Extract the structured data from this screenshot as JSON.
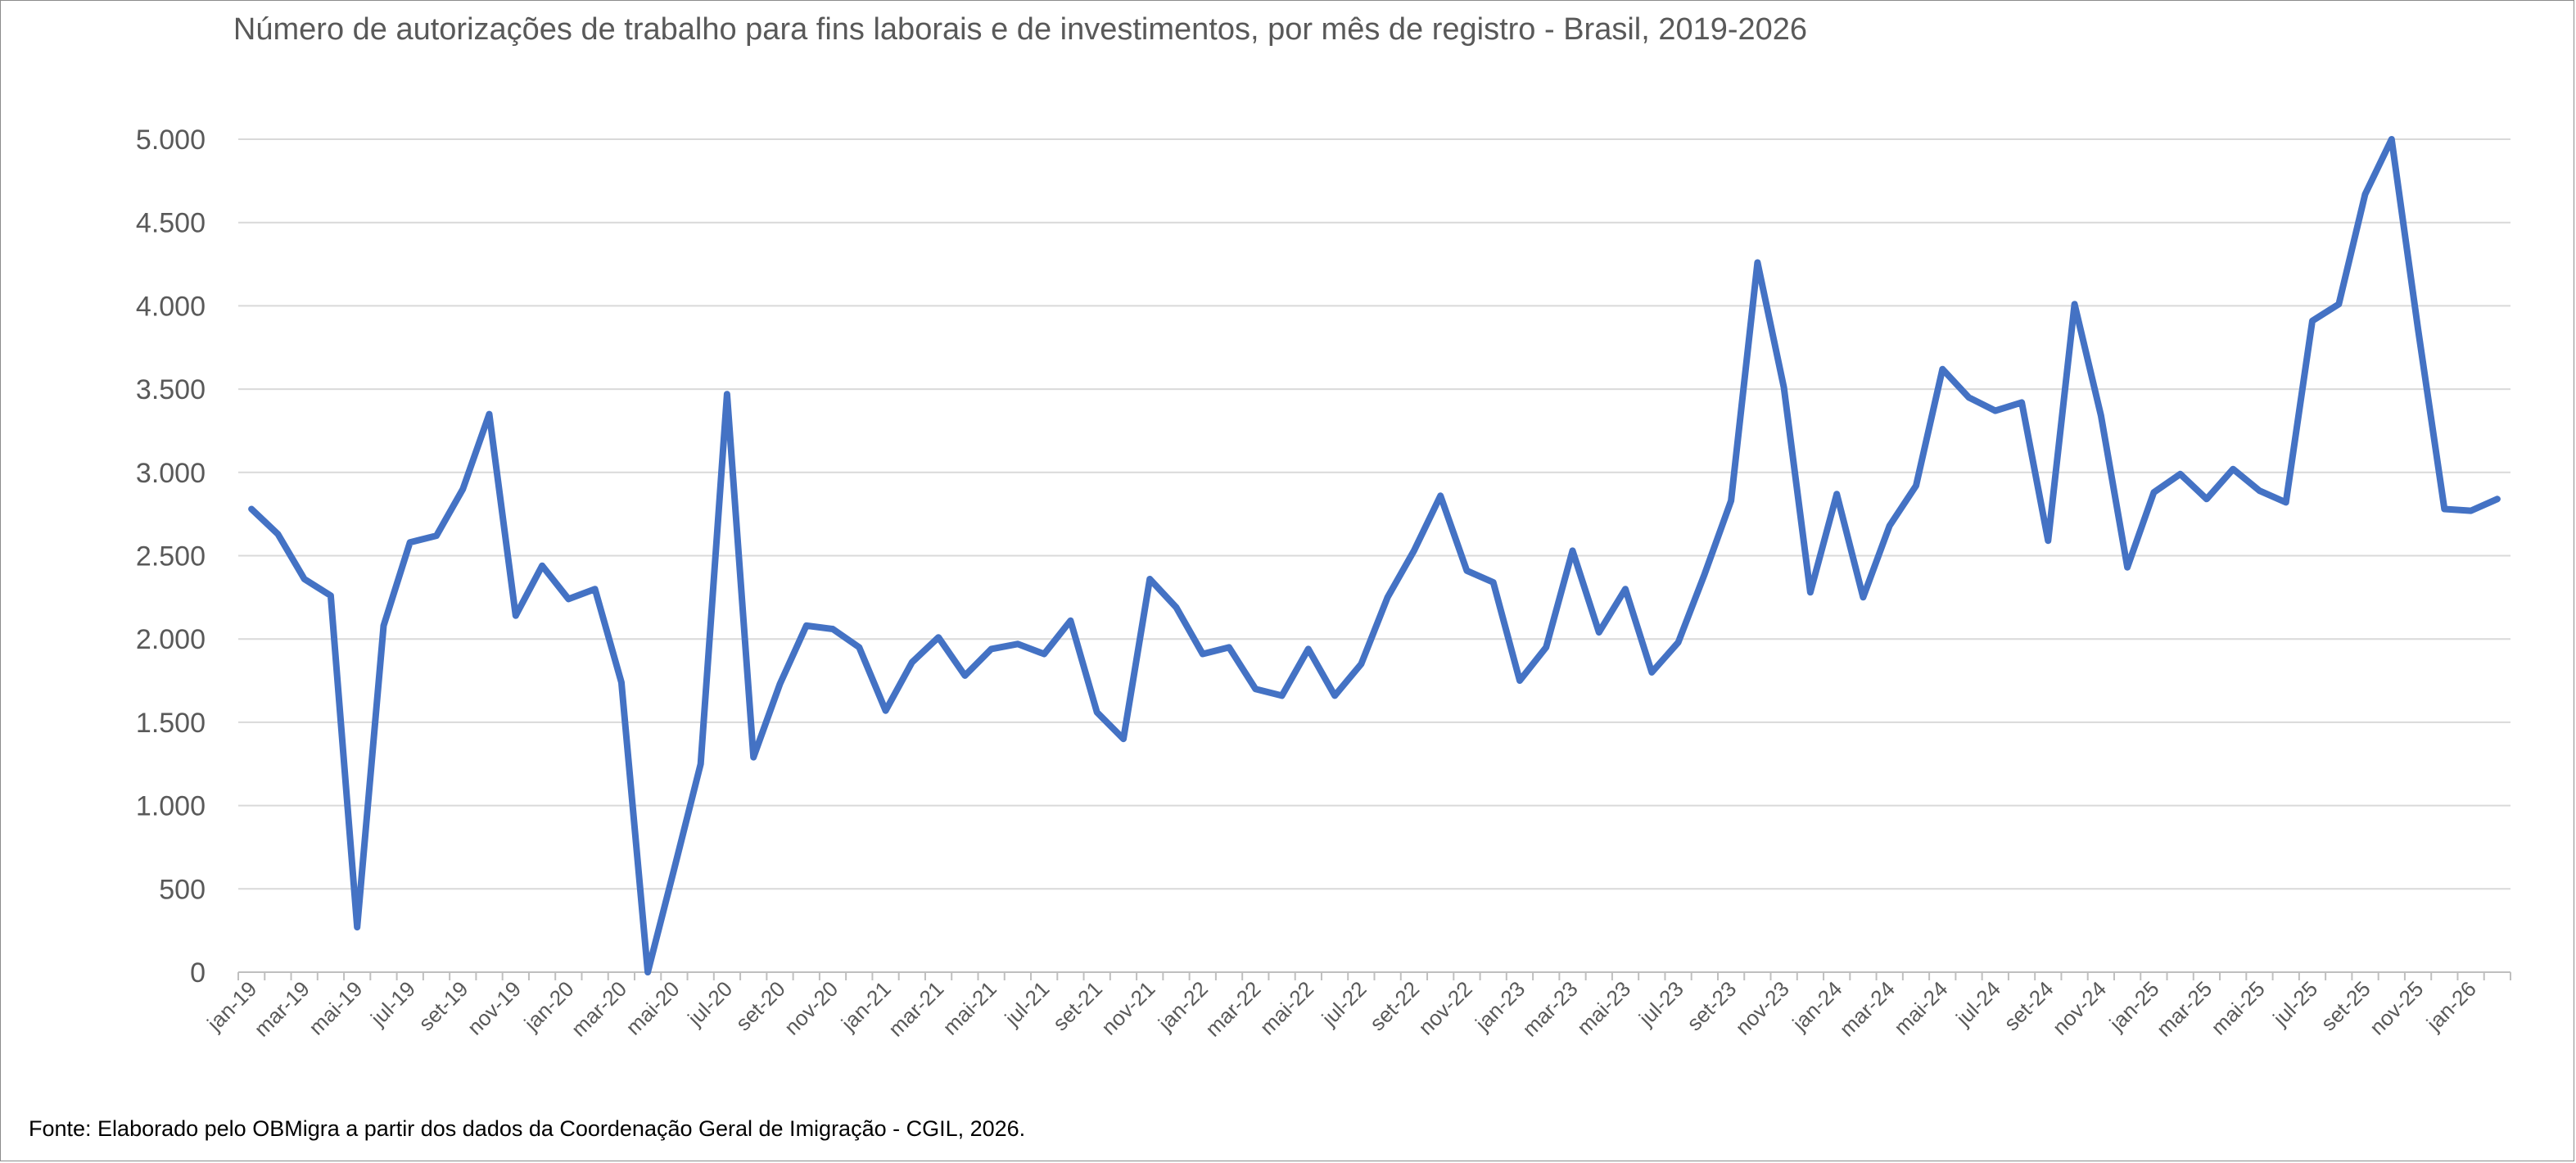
{
  "chart_data": {
    "type": "line",
    "title": "Número de autorizações de trabalho para fins laborais e de investimentos, por mês de registro - Brasil, 2019-2026",
    "xlabel": "",
    "ylabel": "",
    "ylim": [
      0,
      5000
    ],
    "yticks": [
      0,
      500,
      1000,
      1500,
      2000,
      2500,
      3000,
      3500,
      4000,
      4500,
      5000
    ],
    "ytick_labels": [
      "0",
      "500",
      "1.000",
      "1.500",
      "2.000",
      "2.500",
      "3.000",
      "3.500",
      "4.000",
      "4.500",
      "5.000"
    ],
    "grid": true,
    "legend": "none",
    "line_color": "#4472c4",
    "x": [
      "jan-19",
      "fev-19",
      "mar-19",
      "abr-19",
      "mai-19",
      "jun-19",
      "jul-19",
      "ago-19",
      "set-19",
      "out-19",
      "nov-19",
      "dez-19",
      "jan-20",
      "fev-20",
      "mar-20",
      "abr-20",
      "mai-20",
      "jun-20",
      "jul-20",
      "ago-20",
      "set-20",
      "out-20",
      "nov-20",
      "dez-20",
      "jan-21",
      "fev-21",
      "mar-21",
      "abr-21",
      "mai-21",
      "jun-21",
      "jul-21",
      "ago-21",
      "set-21",
      "out-21",
      "nov-21",
      "dez-21",
      "jan-22",
      "fev-22",
      "mar-22",
      "abr-22",
      "mai-22",
      "jun-22",
      "jul-22",
      "ago-22",
      "set-22",
      "out-22",
      "nov-22",
      "dez-22",
      "jan-23",
      "fev-23",
      "mar-23",
      "abr-23",
      "mai-23",
      "jun-23",
      "jul-23",
      "ago-23",
      "set-23",
      "out-23",
      "nov-23",
      "dez-23",
      "jan-24",
      "fev-24",
      "mar-24",
      "abr-24",
      "mai-24",
      "jun-24",
      "jul-24",
      "ago-24",
      "set-24",
      "out-24",
      "nov-24",
      "dez-24",
      "jan-25",
      "fev-25",
      "mar-25",
      "abr-25",
      "mai-25",
      "jun-25",
      "jul-25",
      "ago-25",
      "set-25",
      "out-25",
      "nov-25",
      "dez-25",
      "jan-26",
      "fev-26"
    ],
    "xtick_labels": [
      "jan-19",
      "mar-19",
      "mai-19",
      "jul-19",
      "set-19",
      "nov-19",
      "jan-20",
      "mar-20",
      "mai-20",
      "jul-20",
      "set-20",
      "nov-20",
      "jan-21",
      "mar-21",
      "mai-21",
      "jul-21",
      "set-21",
      "nov-21",
      "jan-22",
      "mar-22",
      "mai-22",
      "jul-22",
      "set-22",
      "nov-22",
      "jan-23",
      "mar-23",
      "mai-23",
      "jul-23",
      "set-23",
      "nov-23",
      "jan-24",
      "mar-24",
      "mai-24",
      "jul-24",
      "set-24",
      "nov-24",
      "jan-25",
      "mar-25",
      "mai-25",
      "jul-25",
      "set-25",
      "nov-25",
      "jan-26"
    ],
    "series": [
      {
        "values": [
          2780,
          2630,
          2360,
          2260,
          270,
          2080,
          2580,
          2620,
          2900,
          3350,
          2140,
          2440,
          2240,
          2300,
          1740,
          0,
          620,
          1250,
          3470,
          1290,
          1730,
          2080,
          2060,
          1950,
          1570,
          1860,
          2010,
          1780,
          1940,
          1970,
          1910,
          2110,
          1560,
          1400,
          2360,
          2190,
          1910,
          1950,
          1700,
          1660,
          1940,
          1660,
          1850,
          2250,
          2530,
          2860,
          2410,
          2340,
          1750,
          1950,
          2530,
          2040,
          2300,
          1800,
          1980,
          2390,
          2830,
          4260,
          3510,
          2280,
          2870,
          2250,
          2680,
          2920,
          3620,
          3450,
          3370,
          3420,
          2590,
          4010,
          3340,
          2430,
          2880,
          2990,
          2840,
          3020,
          2890,
          2820,
          3910,
          4010,
          4670,
          5000,
          3860,
          2780,
          2770,
          2840
        ]
      }
    ]
  },
  "source_note": "Fonte: Elaborado pelo OBMigra a partir dos dados da Coordenação Geral de Imigração - CGIL, 2026."
}
